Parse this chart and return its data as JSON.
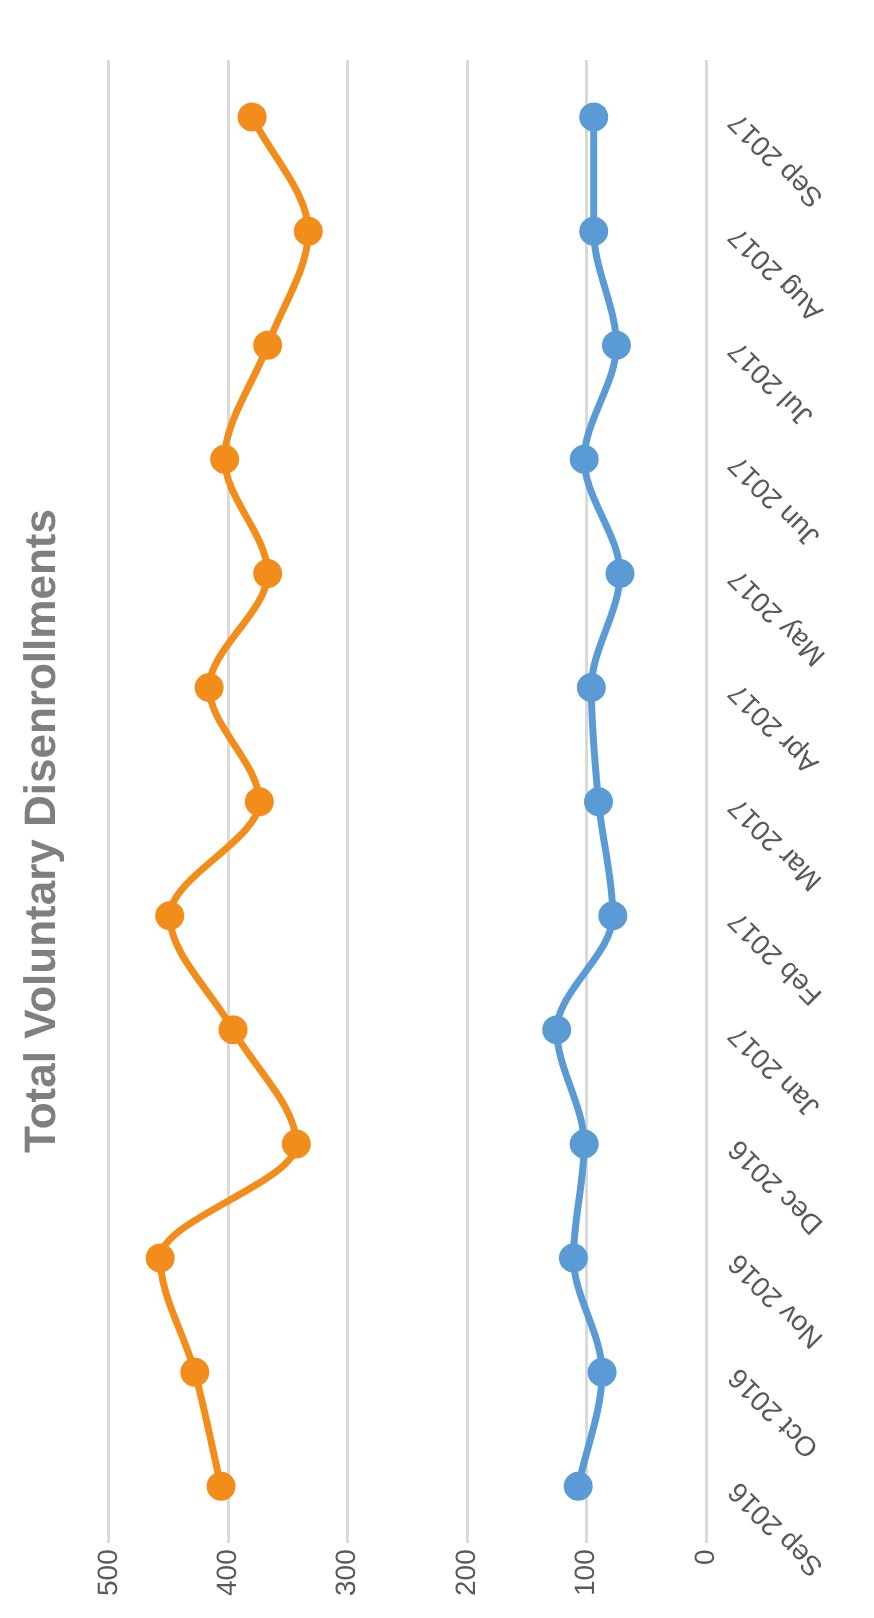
{
  "chart_data": {
    "type": "line",
    "title": "Total Voluntary Disenrollments",
    "orientation": "horizontal",
    "categories": [
      "Sep 2017",
      "Aug 2017",
      "Jul 2017",
      "Jun 2017",
      "May 2017",
      "Apr 2017",
      "Mar 2017",
      "Feb 2017",
      "Jan 2017",
      "Dec 2016",
      "Nov 2016",
      "Oct 2016",
      "Sep 2016"
    ],
    "series": [
      {
        "color": "#f28c1a",
        "values": [
          380,
          333,
          367,
          403,
          367,
          416,
          374,
          449,
          396,
          343,
          457,
          428,
          406
        ]
      },
      {
        "color": "#5b9bd5",
        "values": [
          94,
          94,
          75,
          102,
          72,
          96,
          90,
          78,
          125,
          102,
          111,
          87,
          107
        ]
      }
    ],
    "xlim": [
      500,
      0
    ],
    "xticks": [
      0,
      100,
      200,
      300,
      400,
      500
    ],
    "grid": "x",
    "legend": false,
    "marker": "circle",
    "line_style": "solid"
  }
}
